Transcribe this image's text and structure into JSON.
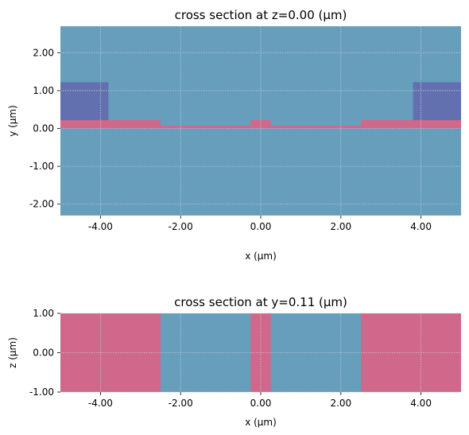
{
  "colors": {
    "background_medium": "#669ebc",
    "slab_material": "#d0688b",
    "side_material": "#6370b0",
    "grid": "#c8c8c8",
    "axis": "#000000"
  },
  "chart_data": [
    {
      "type": "heatmap",
      "title": "cross section at z=0.00 (μm)",
      "xlabel": "x (μm)",
      "ylabel": "y (μm)",
      "xlim": [
        -5.0,
        5.0
      ],
      "ylim": [
        -2.3,
        2.7
      ],
      "xticks": [
        -4,
        -2,
        0,
        2,
        4
      ],
      "xtick_labels": [
        "-4.00",
        "-2.00",
        "0.00",
        "2.00",
        "4.00"
      ],
      "yticks": [
        -2,
        -1,
        0,
        1,
        2
      ],
      "ytick_labels": [
        "-2.00",
        "-1.00",
        "0.00",
        "1.00",
        "2.00"
      ],
      "grid": true,
      "background_material": "background_medium",
      "regions": [
        {
          "material": "slab_material",
          "x": [
            -5.0,
            -2.5
          ],
          "y": [
            0.0,
            0.22
          ]
        },
        {
          "material": "slab_material",
          "x": [
            2.5,
            5.0
          ],
          "y": [
            0.0,
            0.22
          ]
        },
        {
          "material": "slab_material",
          "x": [
            -2.5,
            -0.25
          ],
          "y": [
            0.0,
            0.07
          ]
        },
        {
          "material": "slab_material",
          "x": [
            0.25,
            2.5
          ],
          "y": [
            0.0,
            0.07
          ]
        },
        {
          "material": "slab_material",
          "x": [
            -0.25,
            0.25
          ],
          "y": [
            0.0,
            0.22
          ]
        },
        {
          "material": "side_material",
          "x": [
            -5.0,
            -3.8
          ],
          "y": [
            0.22,
            1.22
          ]
        },
        {
          "material": "side_material",
          "x": [
            3.8,
            5.0
          ],
          "y": [
            0.22,
            1.22
          ]
        }
      ]
    },
    {
      "type": "heatmap",
      "title": "cross section at y=0.11 (μm)",
      "xlabel": "x (μm)",
      "ylabel": "z (μm)",
      "xlim": [
        -5.0,
        5.0
      ],
      "ylim": [
        -1.0,
        1.0
      ],
      "xticks": [
        -4,
        -2,
        0,
        2,
        4
      ],
      "xtick_labels": [
        "-4.00",
        "-2.00",
        "0.00",
        "2.00",
        "4.00"
      ],
      "yticks": [
        -1,
        0,
        1
      ],
      "ytick_labels": [
        "-1.00",
        "0.00",
        "1.00"
      ],
      "grid": true,
      "background_material": "background_medium",
      "regions": [
        {
          "material": "slab_material",
          "x": [
            -5.0,
            -2.5
          ],
          "y": [
            -1.0,
            1.0
          ]
        },
        {
          "material": "slab_material",
          "x": [
            -0.25,
            0.25
          ],
          "y": [
            -1.0,
            1.0
          ]
        },
        {
          "material": "slab_material",
          "x": [
            2.5,
            5.0
          ],
          "y": [
            -1.0,
            1.0
          ]
        }
      ]
    }
  ]
}
